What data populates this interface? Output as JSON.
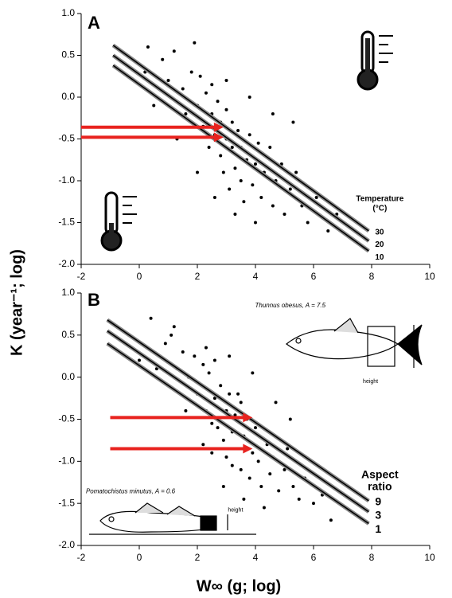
{
  "y_label": "K (year⁻¹; log)",
  "x_label": "W∞ (g; log)",
  "chart_data": [
    {
      "type": "scatter",
      "panel_label": "A",
      "xlim": [
        -2,
        10
      ],
      "ylim": [
        -2,
        1
      ],
      "xticks": [
        -2,
        0,
        2,
        4,
        6,
        8,
        10
      ],
      "yticks": [
        {
          "value": 1,
          "label": "1.0"
        },
        0.5,
        {
          "value": 0,
          "label": "0.0"
        },
        -0.5,
        {
          "value": -1,
          "label": "-1.0"
        },
        -1.5,
        {
          "value": -2,
          "label": "-2.0"
        }
      ],
      "points": {
        "color": "#000000",
        "x": [
          0.3,
          0.8,
          1.0,
          1.2,
          1.5,
          1.6,
          1.8,
          2.0,
          2.1,
          2.2,
          2.3,
          2.4,
          2.5,
          2.5,
          2.6,
          2.7,
          2.8,
          2.8,
          2.9,
          3.0,
          3.0,
          3.1,
          3.2,
          3.2,
          3.3,
          3.4,
          3.5,
          3.5,
          3.6,
          3.7,
          3.8,
          3.9,
          4.0,
          4.1,
          4.2,
          4.3,
          4.5,
          4.6,
          4.7,
          4.9,
          5.0,
          5.2,
          5.4,
          5.6,
          5.8,
          6.1,
          6.5,
          1.3,
          2.0,
          2.6,
          3.3,
          4.0,
          0.5,
          5.3,
          4.6,
          3.8,
          3.0,
          1.9,
          0.2,
          6.8
        ],
        "y": [
          0.6,
          0.45,
          0.2,
          0.55,
          0.1,
          -0.2,
          0.3,
          -0.1,
          0.25,
          -0.35,
          0.05,
          -0.6,
          -0.2,
          0.15,
          -0.45,
          -0.05,
          -0.7,
          -0.3,
          -0.9,
          -0.5,
          -0.15,
          -1.1,
          -0.6,
          -0.3,
          -0.85,
          -0.4,
          -1.0,
          -0.6,
          -1.25,
          -0.75,
          -0.45,
          -1.05,
          -0.8,
          -0.55,
          -1.2,
          -0.9,
          -0.6,
          -1.3,
          -1.0,
          -0.8,
          -1.4,
          -1.1,
          -0.9,
          -1.3,
          -1.5,
          -1.2,
          -1.6,
          -0.5,
          -0.9,
          -1.2,
          -1.4,
          -1.5,
          -0.1,
          -0.3,
          -0.2,
          0.0,
          0.2,
          0.65,
          0.3,
          -1.4
        ]
      },
      "lines": [
        {
          "name": "30",
          "color": "#000000",
          "x": [
            -0.9,
            7.9
          ],
          "values": [
            0.62,
            -1.6
          ]
        },
        {
          "name": "20",
          "color": "#000000",
          "x": [
            -0.9,
            7.9
          ],
          "values": [
            0.5,
            -1.72
          ]
        },
        {
          "name": "10",
          "color": "#000000",
          "x": [
            -0.9,
            7.9
          ],
          "values": [
            0.38,
            -1.84
          ]
        }
      ],
      "legend_title": [
        "Temperature",
        "(°C)"
      ],
      "arrows": [
        {
          "color": "#e8231f",
          "x": [
            -2,
            2.9
          ],
          "y": -0.36
        },
        {
          "color": "#e8231f",
          "x": [
            -2,
            2.9
          ],
          "y": -0.48
        }
      ]
    },
    {
      "type": "scatter",
      "panel_label": "B",
      "xlim": [
        -2,
        10
      ],
      "ylim": [
        -2,
        1
      ],
      "xticks": [
        -2,
        0,
        2,
        4,
        6,
        8,
        10
      ],
      "yticks": [
        {
          "value": 1,
          "label": "1.0"
        },
        0.5,
        {
          "value": 0,
          "label": "0.0"
        },
        -0.5,
        {
          "value": -1,
          "label": "-1.0"
        },
        -1.5,
        {
          "value": -2,
          "label": "-2.0"
        }
      ],
      "points": {
        "color": "#000000",
        "x": [
          0.4,
          0.9,
          1.1,
          1.3,
          1.5,
          1.7,
          1.9,
          2.0,
          2.2,
          2.3,
          2.4,
          2.5,
          2.6,
          2.6,
          2.7,
          2.8,
          2.9,
          3.0,
          3.0,
          3.1,
          3.2,
          3.2,
          3.3,
          3.4,
          3.5,
          3.5,
          3.6,
          3.7,
          3.8,
          3.9,
          4.0,
          4.1,
          4.2,
          4.4,
          4.5,
          4.6,
          4.8,
          5.0,
          5.1,
          5.3,
          5.5,
          5.7,
          6.0,
          6.3,
          0.6,
          1.6,
          2.2,
          2.9,
          3.6,
          4.3,
          5.2,
          4.7,
          3.9,
          3.1,
          2.3,
          1.2,
          0.0,
          6.6,
          2.5,
          3.4
        ],
        "y": [
          0.7,
          0.4,
          0.5,
          0.1,
          0.3,
          0.0,
          0.25,
          -0.2,
          0.15,
          -0.4,
          0.05,
          -0.55,
          -0.25,
          0.2,
          -0.6,
          -0.1,
          -0.75,
          -0.4,
          -0.95,
          -0.2,
          -0.65,
          -1.05,
          -0.45,
          -0.85,
          -0.3,
          -1.1,
          -0.7,
          -0.5,
          -1.2,
          -0.9,
          -0.6,
          -1.0,
          -1.3,
          -0.8,
          -1.15,
          -0.95,
          -1.35,
          -1.1,
          -0.85,
          -1.3,
          -1.45,
          -1.2,
          -1.5,
          -1.4,
          0.1,
          -0.4,
          -0.8,
          -1.3,
          -1.45,
          -1.55,
          -0.5,
          -0.3,
          0.05,
          0.25,
          0.35,
          0.6,
          0.2,
          -1.7,
          -0.9,
          -0.2
        ]
      },
      "lines": [
        {
          "name": "9",
          "color": "#000000",
          "x": [
            -1.1,
            7.9
          ],
          "values": [
            0.68,
            -1.47
          ]
        },
        {
          "name": "3",
          "color": "#000000",
          "x": [
            -1.1,
            7.9
          ],
          "values": [
            0.55,
            -1.6
          ]
        },
        {
          "name": "1",
          "color": "#000000",
          "x": [
            -1.1,
            7.9
          ],
          "values": [
            0.4,
            -1.74
          ]
        }
      ],
      "legend_title": [
        "Aspect",
        "ratio"
      ],
      "annotations": [
        {
          "text": "Thunnus obesus, A = 7.5",
          "x": 5.2,
          "y": 0.85
        },
        {
          "text": "Pomatochistus minutus, A = 0.6",
          "x": -0.3,
          "y": -1.36
        },
        {
          "text": "height",
          "x": 7.7,
          "y": -0.05
        },
        {
          "text": "height",
          "x": 3.05,
          "y": -1.58
        }
      ],
      "arrows": [
        {
          "color": "#e8231f",
          "x": [
            -1,
            3.9
          ],
          "y": -0.48
        },
        {
          "color": "#e8231f",
          "x": [
            -1,
            3.9
          ],
          "y": -0.85
        }
      ]
    }
  ]
}
